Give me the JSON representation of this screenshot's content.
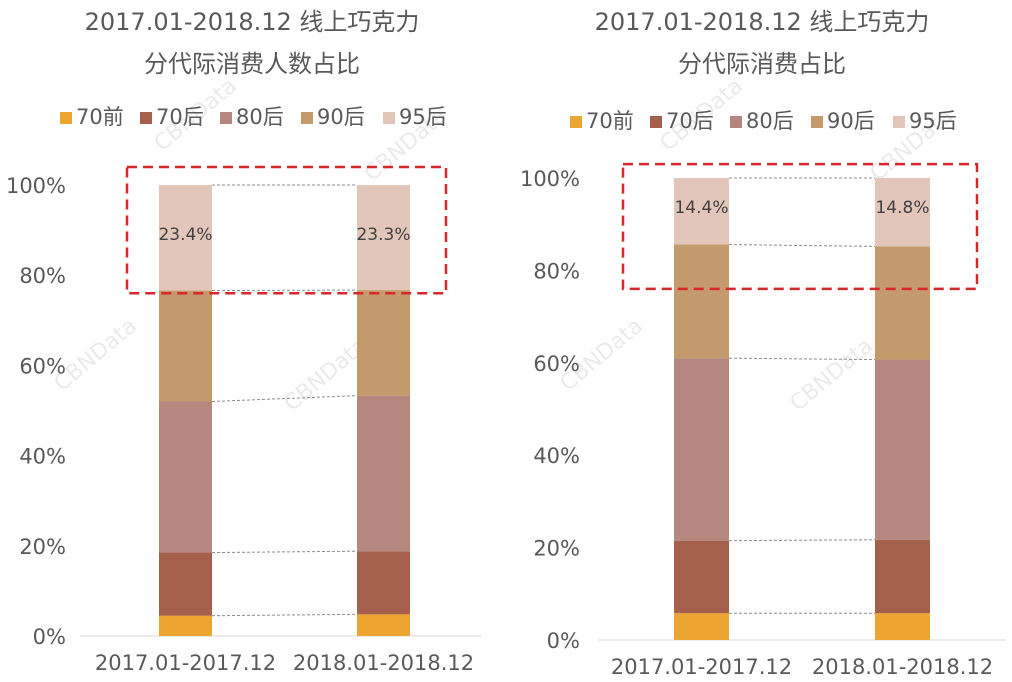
{
  "colors": {
    "pre70": "#EDA531",
    "post70": "#A5604B",
    "post80": "#B5877E",
    "post90": "#C49A6C",
    "post95": "#E3C6BA",
    "highlight": "#D9262A",
    "text": "#595959"
  },
  "watermark": "CBNData",
  "chart_data": [
    {
      "type": "bar",
      "stacked": true,
      "title": [
        "2017.01-2018.12 线上巧克力",
        "分代际消费人数占比"
      ],
      "categories": [
        "2017.01-2017.12",
        "2018.01-2018.12"
      ],
      "legend": [
        "70前",
        "70后",
        "80后",
        "90后",
        "95后"
      ],
      "series": [
        {
          "name": "70前",
          "values": [
            4.5,
            4.8
          ]
        },
        {
          "name": "70后",
          "values": [
            14.0,
            14.0
          ]
        },
        {
          "name": "80后",
          "values": [
            33.5,
            34.5
          ]
        },
        {
          "name": "90后",
          "values": [
            24.6,
            23.4
          ]
        },
        {
          "name": "95后",
          "values": [
            23.4,
            23.3
          ]
        }
      ],
      "data_labels": {
        "series": "95后",
        "values": [
          "23.4%",
          "23.3%"
        ]
      },
      "ylim": [
        0,
        100
      ],
      "yticks": [
        "0%",
        "20%",
        "40%",
        "60%",
        "80%",
        "100%"
      ],
      "xlabel": "",
      "ylabel": "",
      "highlight_range": [
        76,
        104
      ]
    },
    {
      "type": "bar",
      "stacked": true,
      "title": [
        "2017.01-2018.12 线上巧克力",
        "分代际消费占比"
      ],
      "categories": [
        "2017.01-2017.12",
        "2018.01-2018.12"
      ],
      "legend": [
        "70前",
        "70后",
        "80后",
        "90后",
        "95后"
      ],
      "series": [
        {
          "name": "70前",
          "values": [
            5.8,
            5.8
          ]
        },
        {
          "name": "70后",
          "values": [
            15.7,
            15.9
          ]
        },
        {
          "name": "80后",
          "values": [
            39.5,
            39.0
          ]
        },
        {
          "name": "90后",
          "values": [
            24.6,
            24.5
          ]
        },
        {
          "name": "95后",
          "values": [
            14.4,
            14.8
          ]
        }
      ],
      "data_labels": {
        "series": "95后",
        "values": [
          "14.4%",
          "14.8%"
        ]
      },
      "ylim": [
        0,
        100
      ],
      "yticks": [
        "0%",
        "20%",
        "40%",
        "60%",
        "80%",
        "100%"
      ],
      "xlabel": "",
      "ylabel": "",
      "highlight_range": [
        76,
        103
      ]
    }
  ]
}
